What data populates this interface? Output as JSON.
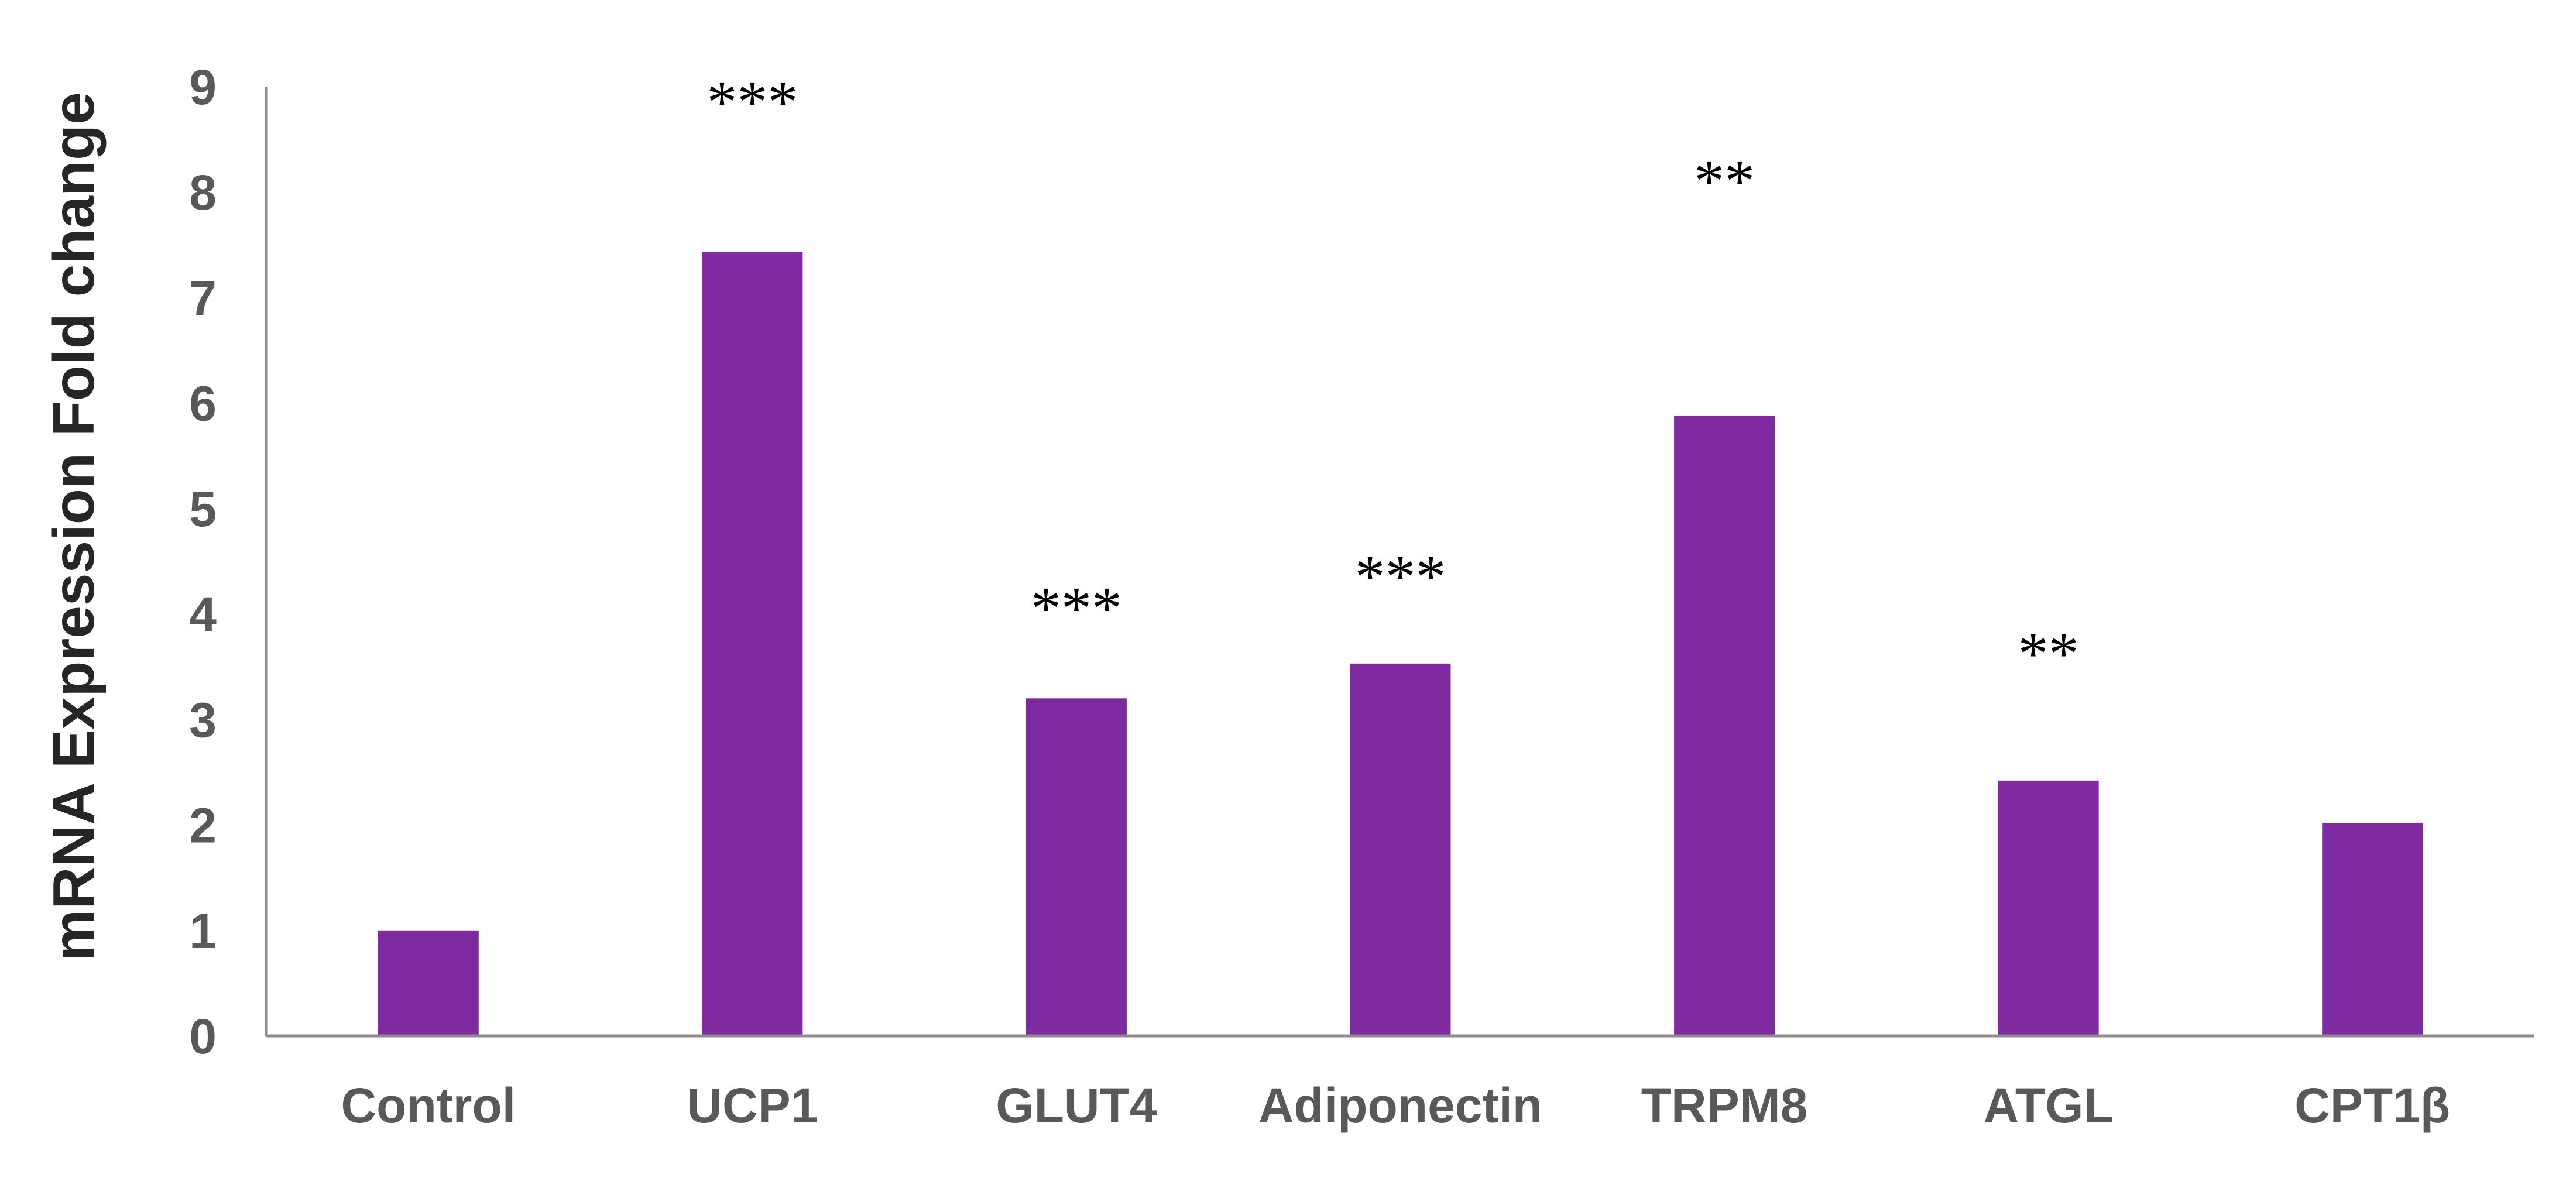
{
  "chart_data": {
    "type": "bar",
    "title": "",
    "xlabel": "",
    "ylabel": "mRNA Expression  Fold change",
    "categories": [
      "Control",
      "UCP1",
      "GLUT4",
      "Adiponectin",
      "TRPM8",
      "ATGL",
      "CPT1β"
    ],
    "values": [
      1.0,
      7.43,
      3.2,
      3.53,
      5.88,
      2.42,
      2.02
    ],
    "significance": [
      "",
      "***",
      "***",
      "***",
      "**",
      "**",
      ""
    ],
    "significance_level": [
      0,
      9.05,
      4.25,
      4.55,
      8.3,
      3.82,
      0
    ],
    "ylim": [
      0,
      9
    ],
    "yticks": [
      "0",
      "1",
      "2",
      "3",
      "4",
      "5",
      "6",
      "7",
      "8",
      "9"
    ],
    "grid": false,
    "legend": "none",
    "bar_color": "#7F2AA1",
    "axis_color": "#8C8C8C"
  }
}
